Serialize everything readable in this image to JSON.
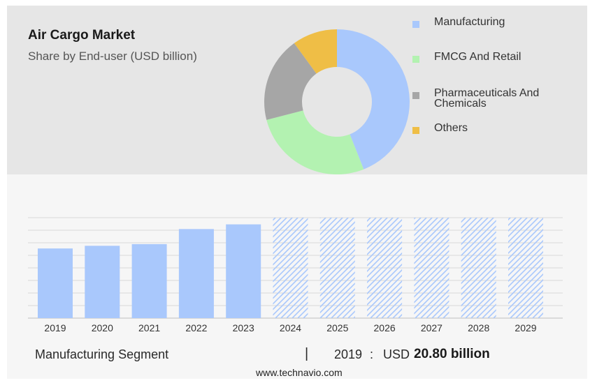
{
  "header": {
    "title": "Air Cargo Market",
    "subtitle": "Share by End-user (USD billion)"
  },
  "chart_data": [
    {
      "type": "pie",
      "style": "donut",
      "labels": [
        "Manufacturing",
        "FMCG And Retail",
        "Pharmaceuticals And Chemicals",
        "Others"
      ],
      "values": [
        44,
        27,
        19,
        10
      ],
      "colors": [
        "#a9c8fc",
        "#b3f2b1",
        "#a6a6a6",
        "#efbe46"
      ],
      "legend_placement": "right"
    },
    {
      "type": "bar",
      "categories": [
        "2019",
        "2020",
        "2021",
        "2022",
        "2023",
        "2024",
        "2025",
        "2026",
        "2027",
        "2028",
        "2029"
      ],
      "values": [
        20.8,
        21.6,
        22.1,
        26.6,
        28.0,
        null,
        null,
        null,
        null,
        null,
        null
      ],
      "forecast_categories": [
        "2024",
        "2025",
        "2026",
        "2027",
        "2028",
        "2029"
      ],
      "ylim": [
        0,
        30
      ],
      "grid": true,
      "colors": {
        "actual": "#a9c8fc",
        "forecast_hatch": "#a9c8fc"
      }
    }
  ],
  "footer": {
    "segment": "Manufacturing Segment",
    "divider": "|",
    "year": "2019",
    "colon": ":",
    "currency": "USD",
    "value": "20.80 billion",
    "source": "www.technavio.com"
  }
}
